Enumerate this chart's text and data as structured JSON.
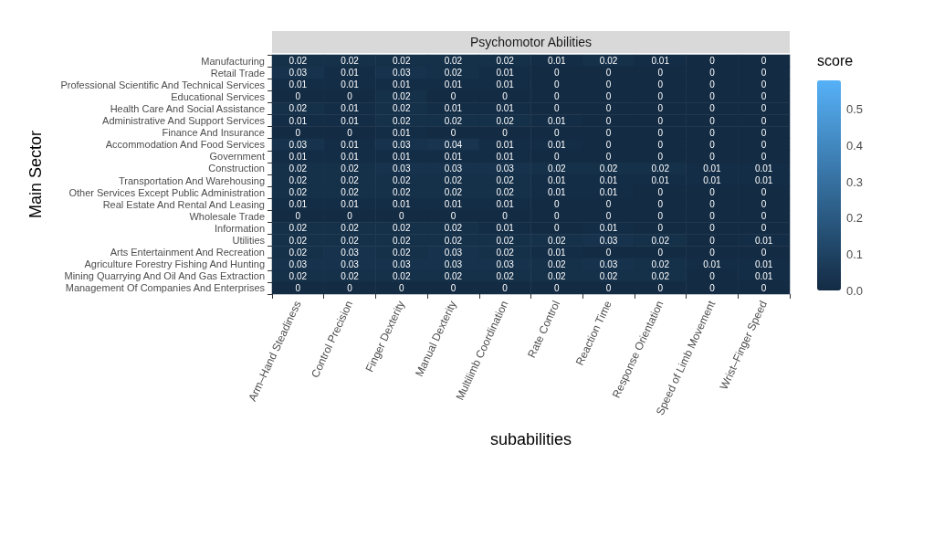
{
  "chart_data": {
    "type": "heatmap",
    "title": "Psychomotor Abilities",
    "xlabel": "subabilities",
    "ylabel": "Main Sector",
    "clabel": "score",
    "categories": [
      "Arm–Hand Steadiness",
      "Control Precision",
      "Finger Dexterity",
      "Manual Dexterity",
      "Multilimb Coordination",
      "Rate Control",
      "Reaction Time",
      "Response Orientation",
      "Speed of Limb Movement",
      "Wrist–Finger Speed"
    ],
    "y_categories": [
      "Manufacturing",
      "Retail Trade",
      "Professional Scientific And Technical Services",
      "Educational Services",
      "Health Care And Social Assistance",
      "Administrative And Support Services",
      "Finance And Insurance",
      "Accommodation And Food Services",
      "Government",
      "Construction",
      "Transportation And Warehousing",
      "Other Services Except Public Administration",
      "Real Estate And Rental And Leasing",
      "Wholesale Trade",
      "Information",
      "Utilities",
      "Arts Entertainment And Recreation",
      "Agriculture Forestry Fishing And Hunting",
      "Mining Quarrying And Oil And Gas Extraction",
      "Management Of Companies And Enterprises"
    ],
    "cells": [
      [
        0.02,
        0.02,
        0.02,
        0.02,
        0.02,
        0.01,
        0.02,
        0.01,
        0,
        0
      ],
      [
        0.03,
        0.01,
        0.03,
        0.02,
        0.01,
        0,
        0,
        0,
        0,
        0
      ],
      [
        0.01,
        0.01,
        0.01,
        0.01,
        0.01,
        0,
        0,
        0,
        0,
        0
      ],
      [
        0,
        0,
        0.02,
        0,
        0,
        0,
        0,
        0,
        0,
        0
      ],
      [
        0.02,
        0.01,
        0.02,
        0.01,
        0.01,
        0,
        0,
        0,
        0,
        0
      ],
      [
        0.01,
        0.01,
        0.02,
        0.02,
        0.02,
        0.01,
        0,
        0,
        0,
        0
      ],
      [
        0,
        0,
        0.01,
        0,
        0,
        0,
        0,
        0,
        0,
        0
      ],
      [
        0.03,
        0.01,
        0.03,
        0.04,
        0.01,
        0.01,
        0,
        0,
        0,
        0
      ],
      [
        0.01,
        0.01,
        0.01,
        0.01,
        0.01,
        0,
        0,
        0,
        0,
        0
      ],
      [
        0.02,
        0.02,
        0.03,
        0.03,
        0.03,
        0.02,
        0.02,
        0.02,
        0.01,
        0.01
      ],
      [
        0.02,
        0.02,
        0.02,
        0.02,
        0.02,
        0.01,
        0.01,
        0.01,
        0.01,
        0.01
      ],
      [
        0.02,
        0.02,
        0.02,
        0.02,
        0.02,
        0.01,
        0.01,
        0,
        0,
        0
      ],
      [
        0.01,
        0.01,
        0.01,
        0.01,
        0.01,
        0,
        0,
        0,
        0,
        0
      ],
      [
        0,
        0,
        0,
        0,
        0,
        0,
        0,
        0,
        0,
        0
      ],
      [
        0.02,
        0.02,
        0.02,
        0.02,
        0.01,
        0,
        0.01,
        0,
        0,
        0
      ],
      [
        0.02,
        0.02,
        0.02,
        0.02,
        0.02,
        0.02,
        0.03,
        0.02,
        0,
        0.01
      ],
      [
        0.02,
        0.03,
        0.02,
        0.03,
        0.02,
        0.01,
        0,
        0,
        0,
        0
      ],
      [
        0.03,
        0.03,
        0.03,
        0.03,
        0.03,
        0.02,
        0.03,
        0.02,
        0.01,
        0.01
      ],
      [
        0.02,
        0.02,
        0.02,
        0.02,
        0.02,
        0.02,
        0.02,
        0.02,
        0,
        0.01
      ],
      [
        0,
        0,
        0,
        0,
        0,
        0,
        0,
        0,
        0,
        0
      ]
    ],
    "clim": [
      0,
      0.58
    ],
    "cticks": [
      {
        "value": 0,
        "label": "0.0"
      },
      {
        "value": 0.1,
        "label": "0.1"
      },
      {
        "value": 0.2,
        "label": "0.2"
      },
      {
        "value": 0.3,
        "label": "0.3"
      },
      {
        "value": 0.4,
        "label": "0.4"
      },
      {
        "value": 0.5,
        "label": "0.5"
      }
    ],
    "data_labels": true
  }
}
